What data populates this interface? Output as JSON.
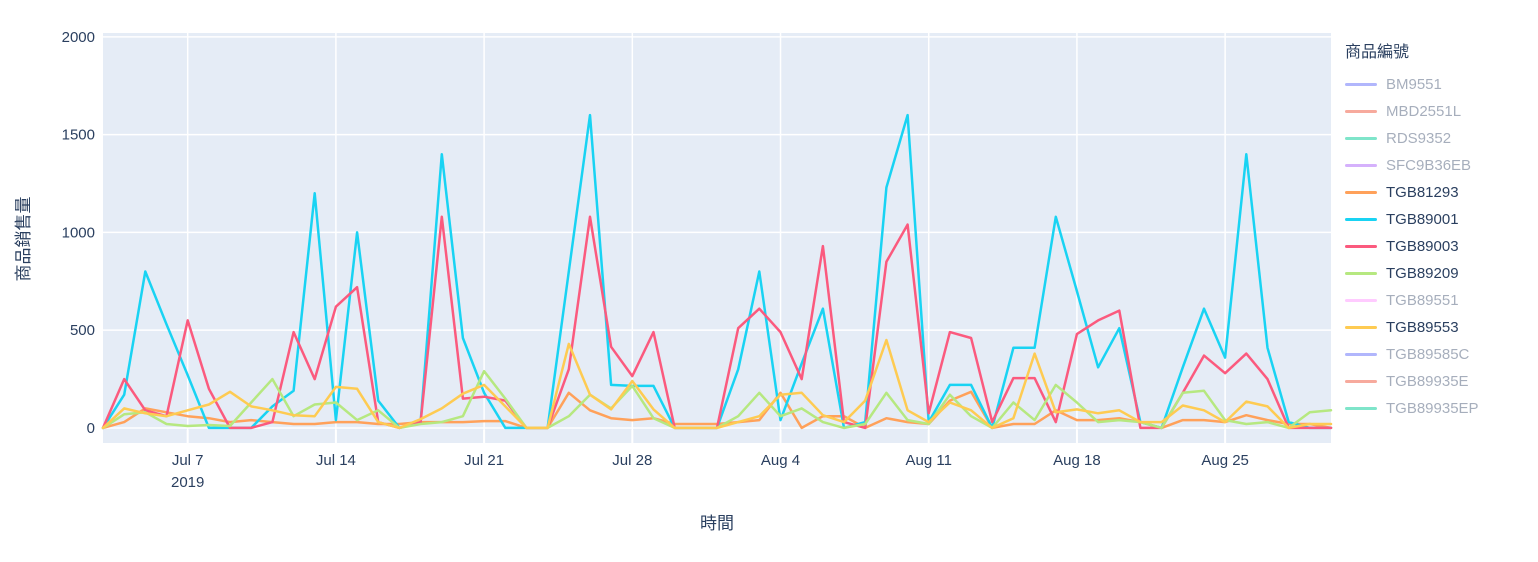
{
  "colors": {
    "plot_bg": "#E5ECF6",
    "grid": "#FFFFFF",
    "text": "#2A3F5F"
  },
  "legend": {
    "title": "商品編號",
    "items": [
      {
        "label": "BM9551",
        "color": "#636EFA",
        "active": false
      },
      {
        "label": "MBD2551L",
        "color": "#EF553B",
        "active": false
      },
      {
        "label": "RDS9352",
        "color": "#00CC96",
        "active": false
      },
      {
        "label": "SFC9B36EB",
        "color": "#AB63FA",
        "active": false
      },
      {
        "label": "TGB81293",
        "color": "#FFA15A",
        "active": true
      },
      {
        "label": "TGB89001",
        "color": "#19D3F3",
        "active": true
      },
      {
        "label": "TGB89003",
        "color": "#FB5A7E",
        "active": true
      },
      {
        "label": "TGB89209",
        "color": "#B6E880",
        "active": true
      },
      {
        "label": "TGB89551",
        "color": "#FF97FF",
        "active": false
      },
      {
        "label": "TGB89553",
        "color": "#FECB52",
        "active": true
      },
      {
        "label": "TGB89585C",
        "color": "#636EFA",
        "active": false
      },
      {
        "label": "TGB89935E",
        "color": "#EF553B",
        "active": false
      },
      {
        "label": "TGB89935EP",
        "color": "#00CC96",
        "active": false
      }
    ]
  },
  "chart_data": {
    "type": "line",
    "xlabel": "時間",
    "ylabel": "商品銷售量",
    "ylim": [
      0,
      2000
    ],
    "yticks": [
      0,
      500,
      1000,
      1500,
      2000
    ],
    "grid": true,
    "legend_position": "right",
    "x": [
      "Jul 3",
      "Jul 4",
      "Jul 5",
      "Jul 6",
      "Jul 7",
      "Jul 8",
      "Jul 9",
      "Jul 10",
      "Jul 11",
      "Jul 12",
      "Jul 13",
      "Jul 14",
      "Jul 15",
      "Jul 16",
      "Jul 17",
      "Jul 18",
      "Jul 19",
      "Jul 20",
      "Jul 21",
      "Jul 22",
      "Jul 23",
      "Jul 24",
      "Jul 25",
      "Jul 26",
      "Jul 27",
      "Jul 28",
      "Jul 29",
      "Jul 30",
      "Jul 31",
      "Aug 1",
      "Aug 2",
      "Aug 3",
      "Aug 4",
      "Aug 5",
      "Aug 6",
      "Aug 7",
      "Aug 8",
      "Aug 9",
      "Aug 10",
      "Aug 11",
      "Aug 12",
      "Aug 13",
      "Aug 14",
      "Aug 15",
      "Aug 16",
      "Aug 17",
      "Aug 18",
      "Aug 19",
      "Aug 20",
      "Aug 21",
      "Aug 22",
      "Aug 23",
      "Aug 24",
      "Aug 25",
      "Aug 26",
      "Aug 27",
      "Aug 28",
      "Aug 29",
      "Aug 30"
    ],
    "xticks": [
      {
        "index": 4,
        "label": "Jul 7",
        "sublabel": "2019"
      },
      {
        "index": 11,
        "label": "Jul 14"
      },
      {
        "index": 18,
        "label": "Jul 21"
      },
      {
        "index": 25,
        "label": "Jul 28"
      },
      {
        "index": 32,
        "label": "Aug 4"
      },
      {
        "index": 39,
        "label": "Aug 11"
      },
      {
        "index": 46,
        "label": "Aug 18"
      },
      {
        "index": 53,
        "label": "Aug 25"
      }
    ],
    "series": [
      {
        "name": "TGB81293",
        "color": "#FFA15A",
        "values": [
          0,
          30,
          100,
          80,
          60,
          50,
          30,
          40,
          30,
          20,
          20,
          30,
          30,
          20,
          20,
          30,
          30,
          30,
          35,
          35,
          0,
          0,
          180,
          90,
          50,
          40,
          50,
          20,
          20,
          20,
          30,
          40,
          180,
          0,
          60,
          60,
          0,
          50,
          30,
          20,
          140,
          185,
          0,
          20,
          20,
          90,
          40,
          40,
          50,
          30,
          0,
          40,
          40,
          30,
          65,
          40,
          20,
          20,
          0
        ]
      },
      {
        "name": "TGB89001",
        "color": "#19D3F3",
        "values": [
          0,
          170,
          800,
          530,
          270,
          0,
          0,
          0,
          110,
          190,
          1200,
          40,
          1000,
          140,
          0,
          30,
          1400,
          460,
          180,
          0,
          0,
          0,
          800,
          1600,
          220,
          215,
          215,
          0,
          0,
          0,
          300,
          800,
          40,
          330,
          610,
          0,
          30,
          1230,
          1600,
          30,
          220,
          220,
          0,
          410,
          410,
          1080,
          700,
          310,
          510,
          30,
          0,
          310,
          610,
          360,
          1400,
          410,
          30,
          0,
          0
        ]
      },
      {
        "name": "TGB89003",
        "color": "#FB5A7E",
        "values": [
          0,
          250,
          90,
          60,
          550,
          200,
          0,
          0,
          30,
          490,
          250,
          620,
          720,
          30,
          0,
          30,
          1080,
          150,
          160,
          140,
          0,
          0,
          300,
          1080,
          415,
          265,
          490,
          0,
          0,
          0,
          510,
          610,
          490,
          250,
          930,
          30,
          0,
          850,
          1040,
          75,
          490,
          460,
          30,
          255,
          255,
          30,
          480,
          550,
          600,
          0,
          0,
          180,
          370,
          280,
          380,
          250,
          0,
          0,
          0
        ]
      },
      {
        "name": "TGB89209",
        "color": "#B6E880",
        "values": [
          0,
          70,
          80,
          20,
          10,
          15,
          10,
          130,
          250,
          60,
          120,
          130,
          40,
          90,
          0,
          20,
          30,
          60,
          290,
          150,
          0,
          0,
          60,
          170,
          100,
          215,
          50,
          0,
          0,
          0,
          60,
          180,
          60,
          100,
          30,
          0,
          20,
          180,
          40,
          20,
          170,
          60,
          0,
          130,
          40,
          220,
          130,
          30,
          40,
          30,
          0,
          180,
          190,
          40,
          20,
          30,
          0,
          80,
          90
        ]
      },
      {
        "name": "TGB89553",
        "color": "#FECB52",
        "values": [
          0,
          100,
          75,
          60,
          90,
          120,
          185,
          110,
          90,
          65,
          60,
          210,
          200,
          30,
          0,
          45,
          100,
          175,
          220,
          110,
          0,
          0,
          430,
          170,
          95,
          240,
          95,
          0,
          0,
          0,
          30,
          60,
          170,
          180,
          65,
          30,
          140,
          450,
          90,
          30,
          130,
          90,
          0,
          50,
          380,
          80,
          95,
          75,
          90,
          30,
          30,
          115,
          90,
          30,
          135,
          110,
          0,
          20,
          20
        ]
      }
    ]
  }
}
